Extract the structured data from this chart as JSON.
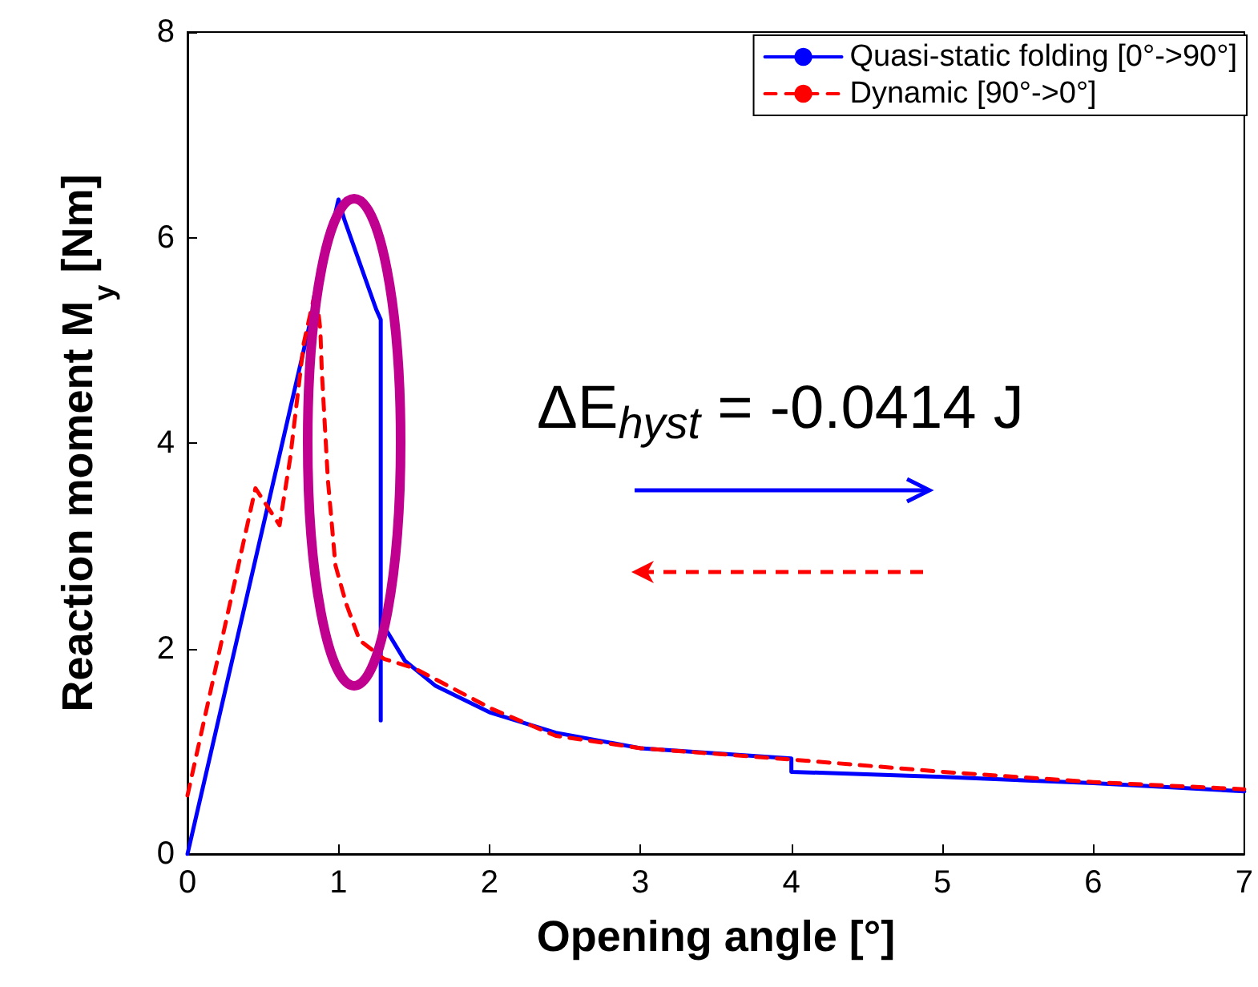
{
  "chart_data": {
    "type": "line",
    "xlabel": "Opening angle [°]",
    "ylabel": "Reaction moment M$_{y}$ [Nm]",
    "xlim": [
      0,
      7
    ],
    "ylim": [
      0,
      8
    ],
    "xticks": [
      0,
      1,
      2,
      3,
      4,
      5,
      6,
      7
    ],
    "yticks": [
      0,
      2,
      4,
      6,
      8
    ],
    "grid": false,
    "legend": "top right",
    "marker": "none",
    "annotations": [
      "ΔE$_{hyst}$ = -0.0414 J"
    ],
    "series": [
      {
        "name": "Quasi-static folding [0°->90°]",
        "color": "#0000ff",
        "line_style": "solid",
        "x": [
          0,
          1.0,
          1.04,
          1.25,
          1.28,
          1.28,
          1.28,
          1.3,
          1.44,
          1.64,
          2.0,
          2.44,
          3.0,
          4.0,
          4.0,
          5.0,
          6.0,
          7.0
        ],
        "values": [
          0,
          6.37,
          6.17,
          5.3,
          5.2,
          1.3,
          2.3,
          2.22,
          1.88,
          1.64,
          1.38,
          1.18,
          1.03,
          0.93,
          0.8,
          0.75,
          0.69,
          0.61
        ]
      },
      {
        "name": "Dynamic [90°->0°]",
        "color": "#ff0000",
        "line_style": "dashed",
        "x": [
          0,
          0.45,
          0.61,
          0.68,
          0.77,
          0.85,
          0.88,
          0.89,
          0.93,
          0.98,
          1.05,
          1.14,
          1.3,
          1.5,
          2.02,
          2.44,
          3.0,
          4.0,
          5.0,
          6.0,
          7.0
        ],
        "values": [
          0.57,
          3.56,
          3.2,
          3.85,
          4.97,
          5.5,
          5.1,
          4.69,
          3.64,
          2.81,
          2.44,
          2.08,
          1.9,
          1.81,
          1.41,
          1.15,
          1.03,
          0.92,
          0.8,
          0.7,
          0.63
        ]
      }
    ]
  }
}
